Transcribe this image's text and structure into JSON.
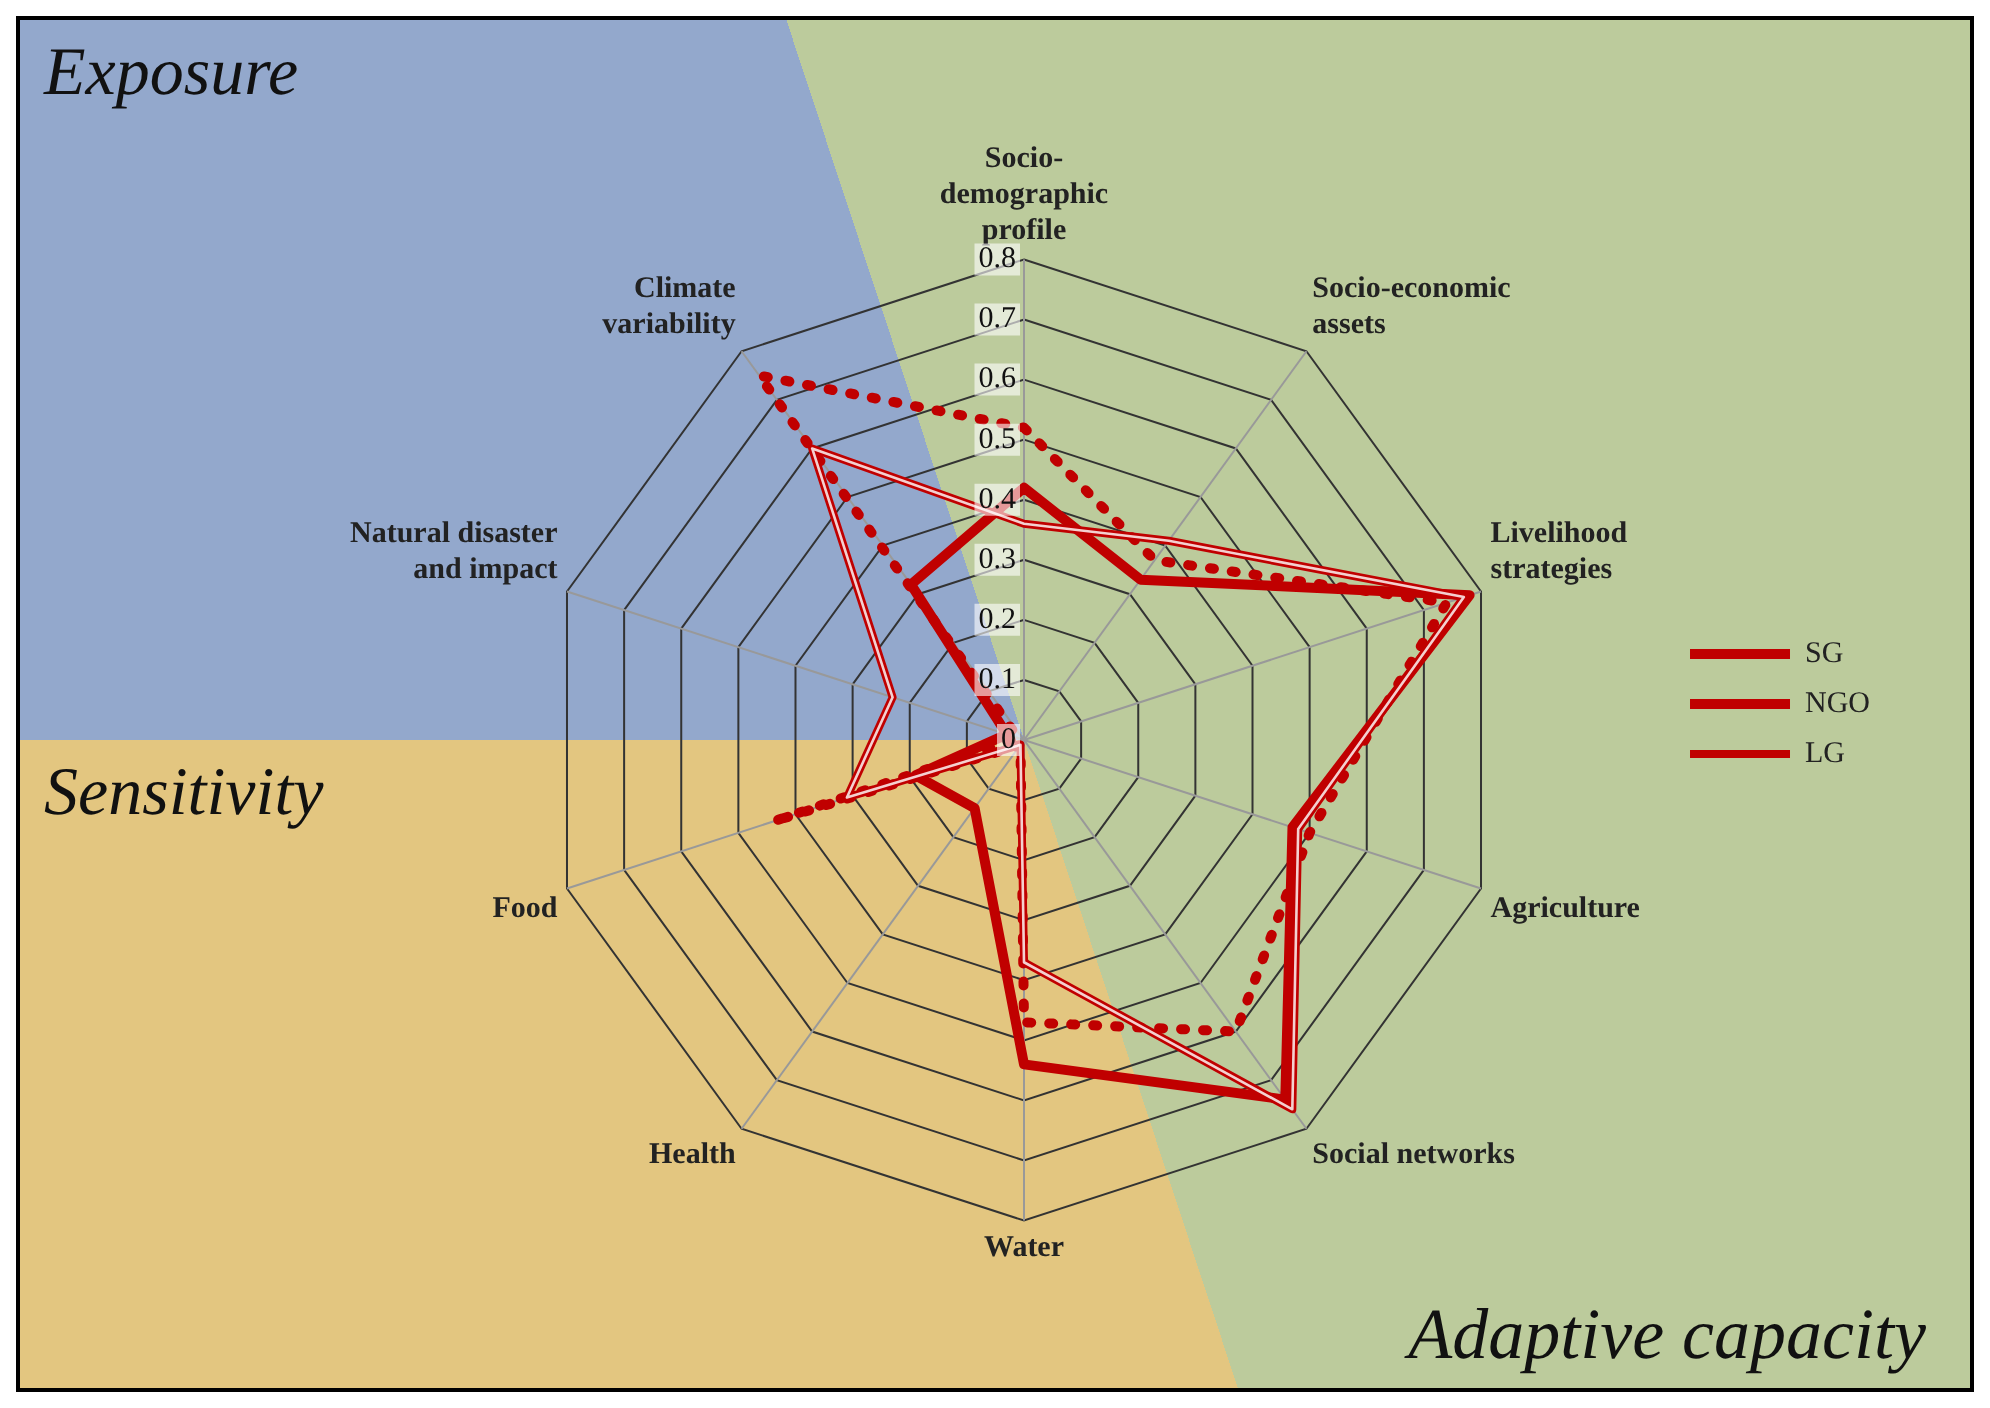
{
  "chart_data": {
    "type": "radar",
    "categories": [
      "Socio-demographic profile",
      "Socio-economic assets",
      "Livelihood strategies",
      "Agriculture",
      "Social networks",
      "Water",
      "Health",
      "Food",
      "Natural disaster and impact",
      "Climate variability"
    ],
    "series": [
      {
        "name": "SG",
        "color": "#c00000",
        "line_style": "solid",
        "values": [
          0.42,
          0.33,
          0.78,
          0.47,
          0.74,
          0.54,
          0.14,
          0.19,
          0.03,
          0.32
        ]
      },
      {
        "name": "NGO",
        "color": "#c00000",
        "line_style": "dotted",
        "values": [
          0.52,
          0.37,
          0.74,
          0.5,
          0.6,
          0.47,
          0.01,
          0.44,
          0.01,
          0.75
        ]
      },
      {
        "name": "LG",
        "color": "#c00000",
        "line_style": "solid",
        "values": [
          0.36,
          0.41,
          0.77,
          0.48,
          0.76,
          0.37,
          0.01,
          0.31,
          0.23,
          0.6
        ]
      }
    ],
    "ylim": [
      0,
      0.8
    ],
    "yticks": [
      0,
      0.1,
      0.2,
      0.3,
      0.4,
      0.5,
      0.6,
      0.7,
      0.8
    ],
    "grid": true,
    "legend": "right",
    "marker": "none",
    "annotations": [
      "Exposure",
      "Sensitivity",
      "Adaptive capacity"
    ]
  }
}
